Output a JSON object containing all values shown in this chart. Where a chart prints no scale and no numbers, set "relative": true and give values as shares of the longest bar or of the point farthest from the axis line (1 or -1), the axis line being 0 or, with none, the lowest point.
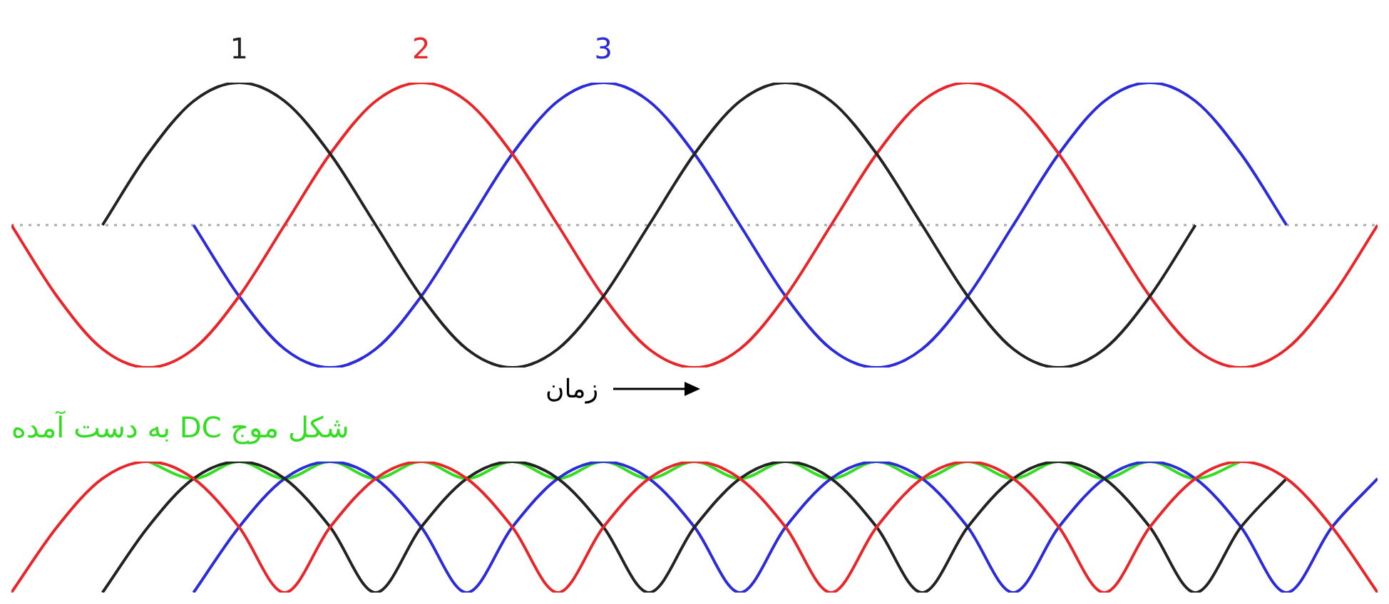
{
  "chart_data": [
    {
      "type": "line",
      "relative": true,
      "legend": false,
      "tick_labels": false,
      "xlabel": "زمان",
      "categories": [
        null,
        null,
        null,
        null,
        null,
        null,
        null,
        null,
        null,
        null,
        null,
        null,
        null,
        null,
        null,
        null,
        null,
        null,
        null,
        null,
        null,
        null,
        null,
        null,
        null,
        null,
        null,
        null,
        null,
        null,
        null
      ],
      "ref_lines": [
        {
          "axis": "y",
          "value": 0,
          "color": "#aaaaaa",
          "line_style": "dotted"
        }
      ],
      "series": [
        {
          "name": "1",
          "color": "#222222",
          "values": [
            null,
            null,
            0,
            0.5,
            0.87,
            1,
            0.87,
            0.5,
            0,
            -0.5,
            -0.87,
            -1,
            -0.87,
            -0.5,
            0,
            0.5,
            0.87,
            1,
            0.87,
            0.5,
            0,
            -0.5,
            -0.87,
            -1,
            -0.87,
            -0.5,
            0,
            null,
            null,
            null,
            null
          ]
        },
        {
          "name": "2",
          "color": "#e8262a",
          "values": [
            0,
            -0.5,
            -0.87,
            -1,
            -0.87,
            -0.5,
            0,
            0.5,
            0.87,
            1,
            0.87,
            0.5,
            0,
            -0.5,
            -0.87,
            -1,
            -0.87,
            -0.5,
            0,
            0.5,
            0.87,
            1,
            0.87,
            0.5,
            0,
            -0.5,
            -0.87,
            -1,
            -0.87,
            -0.5,
            0
          ]
        },
        {
          "name": "3",
          "color": "#2b2bd9",
          "values": [
            null,
            null,
            null,
            null,
            0,
            -0.5,
            -0.87,
            -1,
            -0.87,
            -0.5,
            0,
            0.5,
            0.87,
            1,
            0.87,
            0.5,
            0,
            -0.5,
            -0.87,
            -1,
            -0.87,
            -0.5,
            0,
            0.5,
            0.87,
            1,
            0.87,
            0.5,
            0,
            null,
            null
          ]
        }
      ]
    },
    {
      "type": "line",
      "relative": true,
      "legend": false,
      "tick_labels": false,
      "categories": [
        null,
        null,
        null,
        null,
        null,
        null,
        null,
        null,
        null,
        null,
        null,
        null,
        null,
        null,
        null,
        null,
        null,
        null,
        null,
        null,
        null,
        null,
        null,
        null,
        null,
        null,
        null,
        null,
        null,
        null,
        null
      ],
      "series": [
        {
          "color": "#e8262a",
          "values": [
            0,
            0.5,
            0.87,
            1,
            0.87,
            0.5,
            0,
            0.5,
            0.87,
            1,
            0.87,
            0.5,
            0,
            0.5,
            0.87,
            1,
            0.87,
            0.5,
            0,
            0.5,
            0.87,
            1,
            0.87,
            0.5,
            0,
            0.5,
            0.87,
            1,
            0.87,
            0.5,
            0
          ]
        },
        {
          "color": "#222222",
          "values": [
            null,
            null,
            0,
            0.5,
            0.87,
            1,
            0.87,
            0.5,
            0,
            0.5,
            0.87,
            1,
            0.87,
            0.5,
            0,
            0.5,
            0.87,
            1,
            0.87,
            0.5,
            0,
            0.5,
            0.87,
            1,
            0.87,
            0.5,
            0,
            0.5,
            0.87,
            null,
            null
          ]
        },
        {
          "color": "#2b2bd9",
          "values": [
            null,
            null,
            null,
            null,
            0,
            0.5,
            0.87,
            1,
            0.87,
            0.5,
            0,
            0.5,
            0.87,
            1,
            0.87,
            0.5,
            0,
            0.5,
            0.87,
            1,
            0.87,
            0.5,
            0,
            0.5,
            0.87,
            1,
            0.87,
            0.5,
            0,
            0.5,
            0.87
          ]
        },
        {
          "name": "شکل موج DC به دست آمده",
          "color": "#33dd22",
          "values": [
            null,
            null,
            null,
            1,
            0.87,
            1,
            0.87,
            1,
            0.87,
            1,
            0.87,
            1,
            0.87,
            1,
            0.87,
            1,
            0.87,
            1,
            0.87,
            1,
            0.87,
            1,
            0.87,
            1,
            0.87,
            1,
            0.87,
            1,
            null,
            null,
            null
          ]
        }
      ]
    }
  ]
}
